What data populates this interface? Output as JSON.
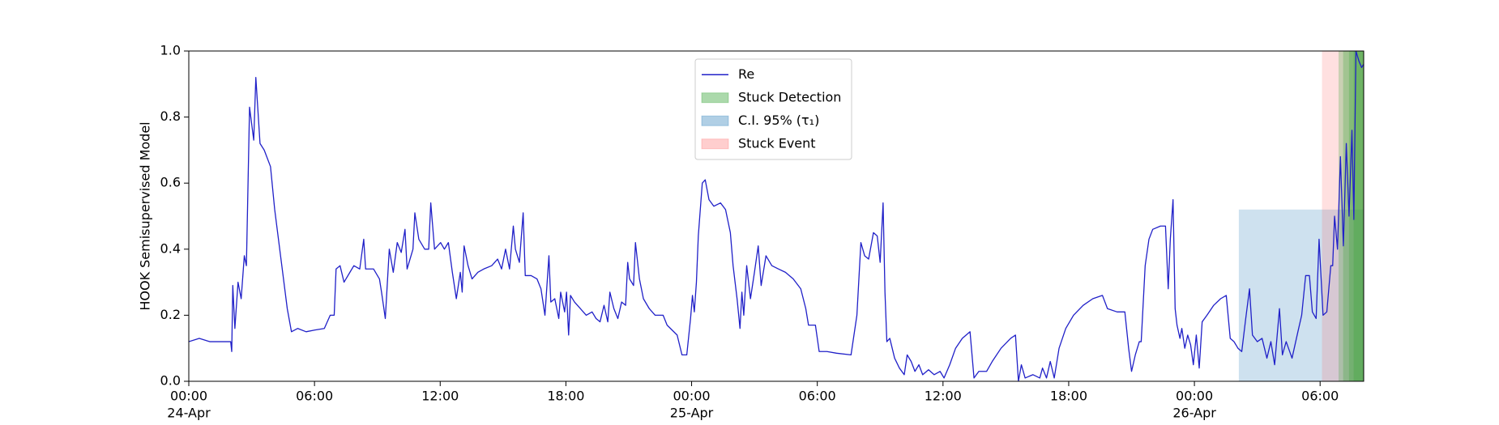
{
  "chart_data": {
    "type": "line",
    "ylabel": "HOOK Semisupervised Model",
    "xlim": [
      0,
      56.08
    ],
    "ylim": [
      0,
      1
    ],
    "xticks": [
      {
        "value": 0,
        "label": "00:00",
        "date": "24-Apr",
        "year": "1900"
      },
      {
        "value": 6,
        "label": "06:00"
      },
      {
        "value": 12,
        "label": "12:00"
      },
      {
        "value": 18,
        "label": "18:00"
      },
      {
        "value": 24,
        "label": "00:00",
        "date": "25-Apr"
      },
      {
        "value": 30,
        "label": "06:00"
      },
      {
        "value": 36,
        "label": "12:00"
      },
      {
        "value": 42,
        "label": "18:00"
      },
      {
        "value": 48,
        "label": "00:00",
        "date": "26-Apr"
      },
      {
        "value": 54,
        "label": "06:00"
      }
    ],
    "yticks": [
      {
        "value": 0,
        "label": "0.0"
      },
      {
        "value": 0.2,
        "label": "0.2"
      },
      {
        "value": 0.4,
        "label": "0.4"
      },
      {
        "value": 0.6,
        "label": "0.6"
      },
      {
        "value": 0.8,
        "label": "0.8"
      },
      {
        "value": 1,
        "label": "1.0"
      }
    ],
    "x": [
      0,
      0.5,
      1,
      1.5,
      2,
      2.05,
      2.1,
      2.2,
      2.35,
      2.5,
      2.65,
      2.75,
      2.9,
      3.1,
      3.2,
      3.4,
      3.6,
      3.9,
      4.1,
      4.4,
      4.7,
      4.9,
      5.2,
      5.6,
      6,
      6.47,
      6.75,
      6.94,
      7.03,
      7.22,
      7.41,
      7.69,
      7.88,
      8.16,
      8.35,
      8.44,
      8.82,
      9.1,
      9.2,
      9.38,
      9.57,
      9.76,
      9.95,
      10.14,
      10.32,
      10.42,
      10.7,
      10.79,
      10.98,
      11.26,
      11.45,
      11.55,
      11.73,
      12.02,
      12.2,
      12.39,
      12.58,
      12.77,
      12.96,
      13.05,
      13.14,
      13.33,
      13.52,
      13.8,
      14.08,
      14.46,
      14.74,
      14.93,
      15.12,
      15.31,
      15.49,
      15.59,
      15.78,
      15.96,
      16.06,
      16.34,
      16.62,
      16.81,
      17.0,
      17.19,
      17.28,
      17.47,
      17.66,
      17.75,
      17.94,
      18.03,
      18.13,
      18.22,
      18.41,
      18.69,
      18.97,
      19.25,
      19.44,
      19.63,
      19.82,
      20.0,
      20.1,
      20.29,
      20.48,
      20.66,
      20.85,
      20.95,
      21.04,
      21.23,
      21.32,
      21.51,
      21.7,
      21.98,
      22.26,
      22.64,
      22.83,
      23.31,
      23.54,
      23.77,
      23.95,
      24.04,
      24.13,
      24.23,
      24.32,
      24.51,
      24.65,
      24.83,
      25.06,
      25.38,
      25.62,
      25.85,
      25.98,
      26.17,
      26.31,
      26.4,
      26.49,
      26.63,
      26.81,
      27.0,
      27.18,
      27.32,
      27.55,
      27.83,
      28.15,
      28.48,
      28.85,
      29.21,
      29.45,
      29.58,
      29.91,
      30.09,
      30.46,
      30.92,
      31.61,
      31.89,
      32.08,
      32.26,
      32.45,
      32.68,
      32.86,
      33.0,
      33.14,
      33.23,
      33.32,
      33.46,
      33.69,
      33.92,
      34.15,
      34.29,
      34.48,
      34.66,
      34.85,
      35.03,
      35.31,
      35.58,
      35.86,
      36.05,
      36.32,
      36.6,
      36.92,
      37.29,
      37.48,
      37.71,
      38.08,
      38.35,
      38.77,
      39.23,
      39.46,
      39.6,
      39.74,
      39.92,
      40.29,
      40.62,
      40.75,
      40.94,
      41.12,
      41.31,
      41.54,
      41.86,
      42.23,
      42.69,
      43.15,
      43.61,
      43.85,
      44.31,
      44.68,
      44.86,
      45.0,
      45.18,
      45.37,
      45.46,
      45.65,
      45.83,
      46.01,
      46.38,
      46.62,
      46.75,
      46.85,
      46.98,
      47.08,
      47.17,
      47.31,
      47.4,
      47.54,
      47.68,
      47.82,
      47.95,
      48.09,
      48.23,
      48.37,
      48.6,
      48.92,
      49.25,
      49.52,
      49.71,
      49.89,
      50.08,
      50.26,
      50.45,
      50.63,
      50.77,
      51.0,
      51.23,
      51.46,
      51.65,
      51.83,
      52.06,
      52.2,
      52.38,
      52.66,
      52.94,
      53.12,
      53.31,
      53.49,
      53.63,
      53.81,
      53.95,
      54.14,
      54.32,
      54.51,
      54.6,
      54.69,
      54.83,
      54.97,
      55.11,
      55.25,
      55.38,
      55.52,
      55.61,
      55.71,
      55.85,
      55.98,
      56.08
    ],
    "series": [
      {
        "name": "Re",
        "color": "#2020c8",
        "values": [
          0.12,
          0.13,
          0.12,
          0.12,
          0.12,
          0.09,
          0.29,
          0.16,
          0.3,
          0.25,
          0.38,
          0.35,
          0.83,
          0.73,
          0.92,
          0.72,
          0.7,
          0.65,
          0.52,
          0.37,
          0.22,
          0.15,
          0.16,
          0.15,
          0.155,
          0.16,
          0.2,
          0.2,
          0.34,
          0.35,
          0.3,
          0.33,
          0.35,
          0.34,
          0.43,
          0.34,
          0.34,
          0.31,
          0.27,
          0.19,
          0.4,
          0.33,
          0.42,
          0.39,
          0.46,
          0.34,
          0.4,
          0.51,
          0.43,
          0.4,
          0.4,
          0.54,
          0.4,
          0.42,
          0.4,
          0.42,
          0.33,
          0.25,
          0.33,
          0.27,
          0.41,
          0.35,
          0.31,
          0.33,
          0.34,
          0.35,
          0.37,
          0.34,
          0.4,
          0.34,
          0.47,
          0.4,
          0.36,
          0.51,
          0.32,
          0.32,
          0.31,
          0.28,
          0.2,
          0.38,
          0.24,
          0.25,
          0.19,
          0.27,
          0.21,
          0.27,
          0.14,
          0.26,
          0.24,
          0.22,
          0.2,
          0.21,
          0.19,
          0.18,
          0.23,
          0.18,
          0.27,
          0.22,
          0.19,
          0.24,
          0.23,
          0.36,
          0.31,
          0.29,
          0.42,
          0.31,
          0.25,
          0.22,
          0.2,
          0.2,
          0.17,
          0.14,
          0.08,
          0.08,
          0.19,
          0.26,
          0.21,
          0.3,
          0.44,
          0.6,
          0.61,
          0.55,
          0.53,
          0.54,
          0.52,
          0.45,
          0.35,
          0.25,
          0.16,
          0.27,
          0.2,
          0.35,
          0.25,
          0.33,
          0.41,
          0.29,
          0.38,
          0.35,
          0.34,
          0.33,
          0.31,
          0.28,
          0.22,
          0.17,
          0.17,
          0.09,
          0.09,
          0.085,
          0.08,
          0.2,
          0.42,
          0.38,
          0.37,
          0.45,
          0.44,
          0.36,
          0.54,
          0.27,
          0.12,
          0.13,
          0.07,
          0.04,
          0.02,
          0.08,
          0.06,
          0.03,
          0.05,
          0.02,
          0.035,
          0.02,
          0.03,
          0.01,
          0.05,
          0.1,
          0.13,
          0.15,
          0.01,
          0.03,
          0.03,
          0.06,
          0.1,
          0.13,
          0.14,
          0,
          0.05,
          0.01,
          0.02,
          0.01,
          0.04,
          0.01,
          0.06,
          0.01,
          0.1,
          0.16,
          0.2,
          0.23,
          0.25,
          0.26,
          0.22,
          0.21,
          0.21,
          0.1,
          0.03,
          0.08,
          0.12,
          0.12,
          0.35,
          0.43,
          0.46,
          0.47,
          0.47,
          0.28,
          0.43,
          0.55,
          0.22,
          0.17,
          0.13,
          0.16,
          0.1,
          0.14,
          0.11,
          0.05,
          0.14,
          0.04,
          0.18,
          0.2,
          0.23,
          0.25,
          0.26,
          0.13,
          0.12,
          0.1,
          0.09,
          0.19,
          0.28,
          0.14,
          0.12,
          0.13,
          0.07,
          0.12,
          0.05,
          0.22,
          0.08,
          0.12,
          0.07,
          0.15,
          0.2,
          0.32,
          0.32,
          0.21,
          0.19,
          0.43,
          0.2,
          0.21,
          0.35,
          0.35,
          0.5,
          0.4,
          0.68,
          0.41,
          0.72,
          0.5,
          0.76,
          0.49,
          1.0,
          0.97,
          0.95,
          0.96
        ]
      }
    ],
    "spans": [
      {
        "name": "Stuck Detection",
        "color": "#2ca02c",
        "opacity": 0.25,
        "x": [
          [
            54.88,
            56.08
          ],
          [
            55.1,
            56.08
          ],
          [
            55.38,
            56.08
          ],
          [
            55.6,
            56.08
          ]
        ]
      },
      {
        "name": "C.I. 95% (τ₁)",
        "color": "#1f77b4",
        "opacity": 0.22,
        "x": [
          [
            50.12,
            56.08
          ]
        ],
        "y": [
          0,
          0.52
        ]
      },
      {
        "name": "Stuck Event",
        "color": "#ff6666",
        "opacity": 0.2,
        "x": [
          [
            54.09,
            56.08
          ]
        ]
      }
    ],
    "legend": "upper center"
  }
}
